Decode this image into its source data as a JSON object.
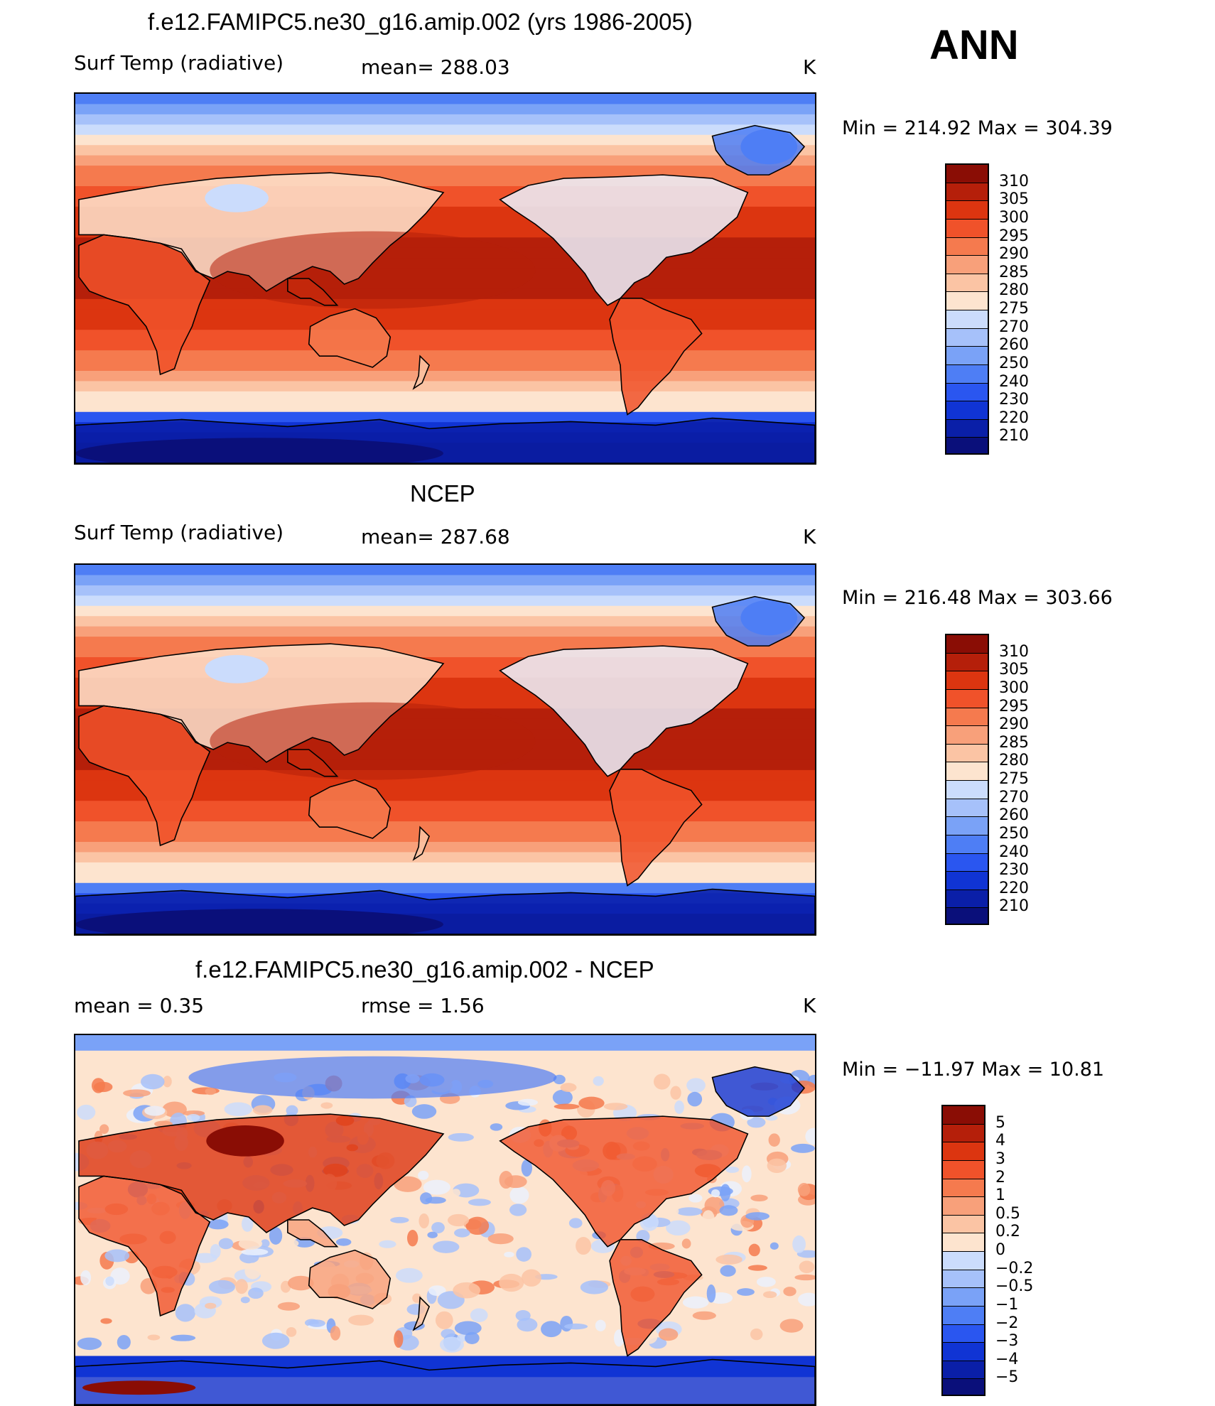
{
  "season": "ANN",
  "units": "K",
  "colors": {
    "field": [
      "#0a0f7a",
      "#0a1fa8",
      "#1034d4",
      "#2a56f0",
      "#4e7ef5",
      "#7aa2f7",
      "#a6c1fa",
      "#cbdcfc",
      "#ebf1fd",
      "#fde4cf",
      "#fbc4a4",
      "#f8a07a",
      "#f57a4e",
      "#f0522a",
      "#dc3510",
      "#b51f0a",
      "#8a0d05"
    ],
    "diff": [
      "#0a0f7a",
      "#0a1fa8",
      "#1034d4",
      "#2a56f0",
      "#4e7ef5",
      "#7aa2f7",
      "#a6c1fa",
      "#cbdcfc",
      "#ebf1fd",
      "#fde4cf",
      "#fbc4a4",
      "#f8a07a",
      "#f57a4e",
      "#f0522a",
      "#dc3510",
      "#b51f0a",
      "#8a0d05"
    ]
  },
  "chart_data": [
    {
      "type": "heatmap",
      "title": "f.e12.FAMIPC5.ne30_g16.amip.002 (yrs 1986-2005)",
      "variable": "Surf Temp (radiative)",
      "mean_label": "mean= 288.03",
      "units": "K",
      "min": 214.92,
      "max": 304.39,
      "minmax_label": "Min  =  214.92  Max  =  304.39",
      "colorbar_labels": [
        "310",
        "305",
        "300",
        "295",
        "290",
        "285",
        "280",
        "275",
        "270",
        "260",
        "250",
        "240",
        "230",
        "220",
        "210"
      ],
      "field_kind": "temperature"
    },
    {
      "type": "heatmap",
      "title": "NCEP",
      "variable": "Surf Temp (radiative)",
      "mean_label": "mean= 287.68",
      "units": "K",
      "min": 216.48,
      "max": 303.66,
      "minmax_label": "Min  =  216.48  Max  =  303.66",
      "colorbar_labels": [
        "310",
        "305",
        "300",
        "295",
        "290",
        "285",
        "280",
        "275",
        "270",
        "260",
        "250",
        "240",
        "230",
        "220",
        "210"
      ],
      "field_kind": "temperature"
    },
    {
      "type": "heatmap",
      "title": "f.e12.FAMIPC5.ne30_g16.amip.002 - NCEP",
      "mean_label": "mean =      0.35",
      "rmse_label": "rmse =      1.56",
      "units": "K",
      "min": -11.97,
      "max": 10.81,
      "minmax_label": "Min  =  −11.97  Max  =     10.81",
      "colorbar_labels": [
        "5",
        "4",
        "3",
        "2",
        "1",
        "0.5",
        "0.2",
        "0",
        "−0.2",
        "−0.5",
        "−1",
        "−2",
        "−3",
        "−4",
        "−5"
      ],
      "field_kind": "difference"
    }
  ]
}
